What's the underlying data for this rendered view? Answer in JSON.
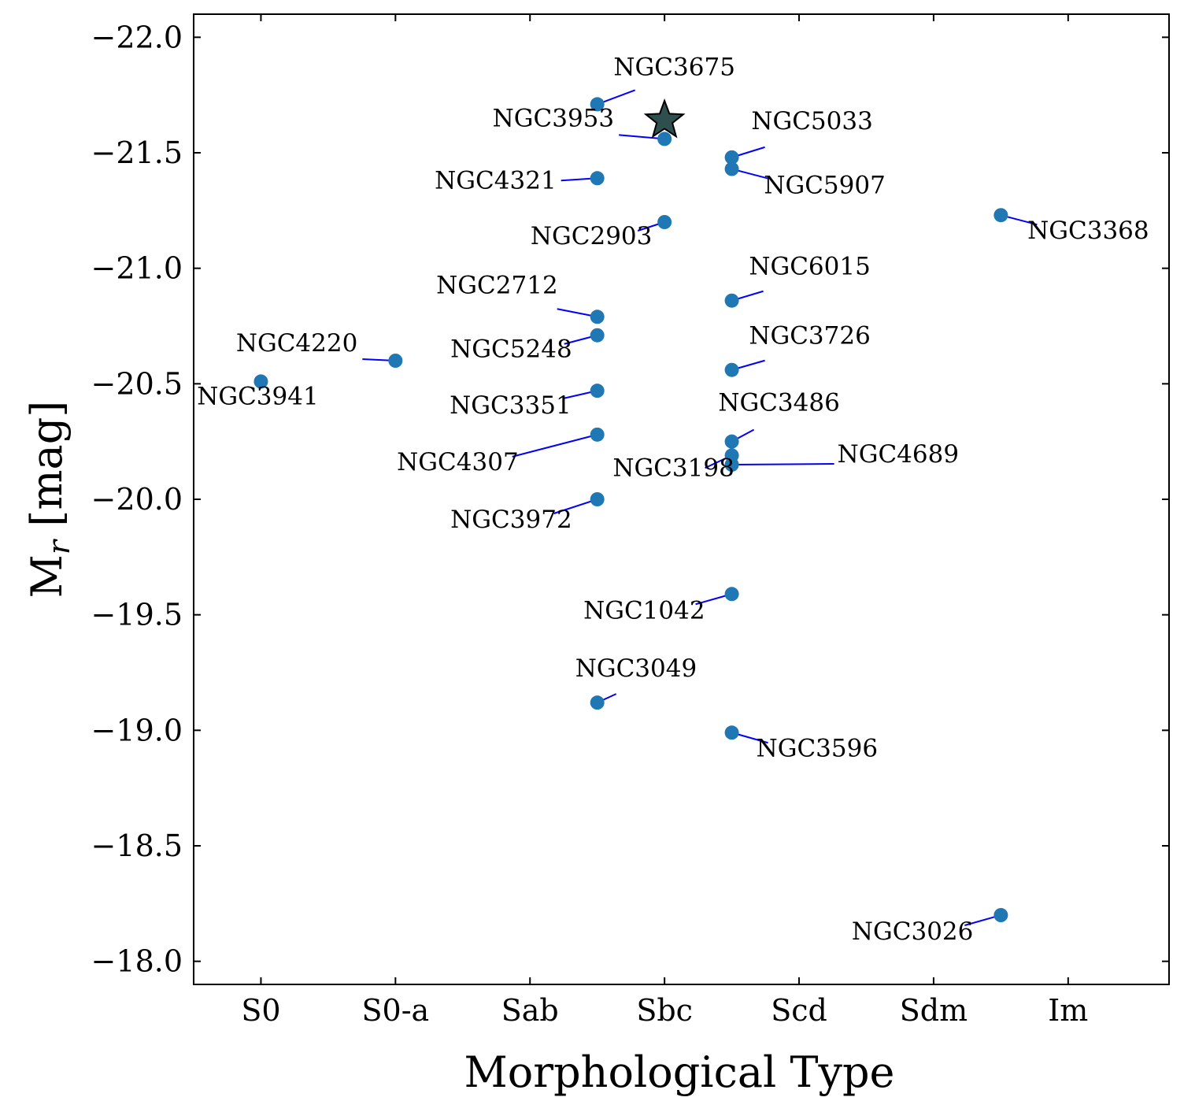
{
  "chart_data": {
    "type": "scatter",
    "xlabel": "Morphological Type",
    "ylabel": "M",
    "ylabel_sub": "r",
    "ylabel_unit": "[mag]",
    "categories": [
      "S0",
      "S0-a",
      "Sab",
      "Sbc",
      "Scd",
      "Sdm",
      "Im"
    ],
    "xlim": [
      -0.5,
      6.75
    ],
    "ylim": [
      -17.9,
      -22.1
    ],
    "yticks": [
      -22.0,
      -21.5,
      -21.0,
      -20.5,
      -20.0,
      -19.5,
      -19.0,
      -18.5,
      -18.0
    ],
    "ytick_labels": [
      "−22.0",
      "−21.5",
      "−21.0",
      "−20.5",
      "−20.0",
      "−19.5",
      "−19.0",
      "−18.5",
      "−18.0"
    ],
    "marker_color": "#1f77b4",
    "line_color": "#0000ff",
    "star_color": "#2f4f4f",
    "points": [
      {
        "name": "NGC3675",
        "x": 2.5,
        "y": -21.71
      },
      {
        "name": "NGC3953",
        "x": 3.0,
        "y": -21.56
      },
      {
        "name": "NGC5033",
        "x": 3.5,
        "y": -21.48
      },
      {
        "name": "NGC5907",
        "x": 3.5,
        "y": -21.43
      },
      {
        "name": "NGC4321",
        "x": 2.5,
        "y": -21.39
      },
      {
        "name": "NGC3368",
        "x": 5.5,
        "y": -21.23
      },
      {
        "name": "NGC2903",
        "x": 3.0,
        "y": -21.2
      },
      {
        "name": "NGC6015",
        "x": 3.5,
        "y": -20.86
      },
      {
        "name": "NGC2712",
        "x": 2.5,
        "y": -20.79
      },
      {
        "name": "NGC5248",
        "x": 2.5,
        "y": -20.71
      },
      {
        "name": "NGC4220",
        "x": 1.0,
        "y": -20.6
      },
      {
        "name": "NGC3726",
        "x": 3.5,
        "y": -20.56
      },
      {
        "name": "NGC3941",
        "x": 0.0,
        "y": -20.51
      },
      {
        "name": "NGC3351",
        "x": 2.5,
        "y": -20.47
      },
      {
        "name": "NGC3486",
        "x": 3.5,
        "y": -20.25
      },
      {
        "name": "NGC4307",
        "x": 2.5,
        "y": -20.28
      },
      {
        "name": "NGC3198",
        "x": 3.5,
        "y": -20.19
      },
      {
        "name": "NGC4689",
        "x": 3.5,
        "y": -20.15
      },
      {
        "name": "NGC3972",
        "x": 2.5,
        "y": -20.0
      },
      {
        "name": "NGC1042",
        "x": 3.5,
        "y": -19.59
      },
      {
        "name": "NGC3049",
        "x": 2.5,
        "y": -19.12
      },
      {
        "name": "NGC3596",
        "x": 3.5,
        "y": -18.99
      },
      {
        "name": "NGC3026",
        "x": 5.5,
        "y": -18.2
      }
    ],
    "highlight": {
      "name": "highlighted-galaxy",
      "x": 3.0,
      "y": -21.64
    }
  }
}
